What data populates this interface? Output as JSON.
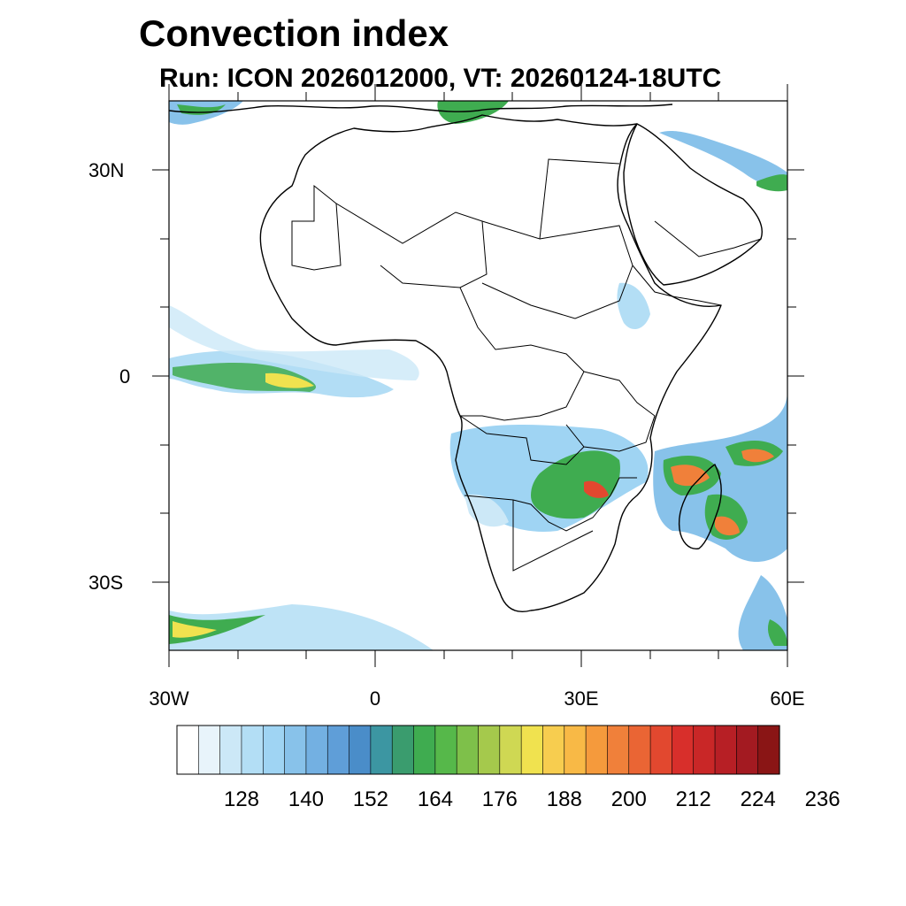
{
  "title": "Convection index",
  "subtitle": "Run: ICON 2026012000,  VT: 20260124-18UTC",
  "axes": {
    "lat_labels": [
      "30N",
      "0",
      "30S"
    ],
    "lon_labels": [
      "30W",
      "0",
      "30E",
      "60E"
    ]
  },
  "colorbar": {
    "colors": [
      "#ffffff",
      "#e8f4fb",
      "#cce8f7",
      "#b3def5",
      "#9fd4f3",
      "#88c2ea",
      "#73b0e2",
      "#5f9ed8",
      "#4a8dc9",
      "#3c96a2",
      "#3a9c6e",
      "#3fac50",
      "#56b84a",
      "#7ec04a",
      "#a5c94c",
      "#cfd853",
      "#f0e24f",
      "#f7cd4f",
      "#f8b946",
      "#f59a3c",
      "#f0803a",
      "#ea6534",
      "#e2482f",
      "#d82f2b",
      "#c92727",
      "#b71f25",
      "#a31a21",
      "#8a1515"
    ],
    "labels": [
      "128",
      "140",
      "152",
      "164",
      "176",
      "188",
      "200",
      "212",
      "224",
      "236"
    ]
  }
}
